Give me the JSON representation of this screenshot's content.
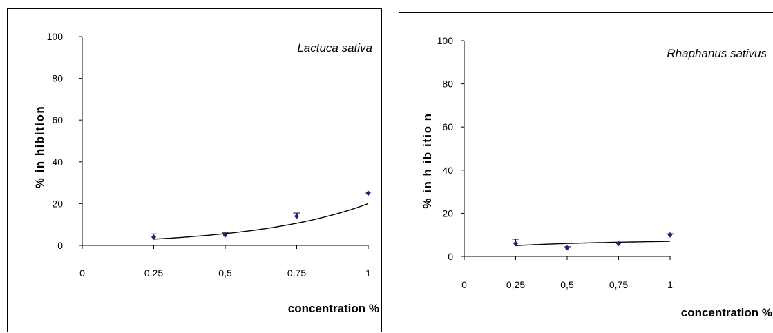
{
  "chart_data": [
    {
      "type": "scatter",
      "annotation": "Lactuca sativa",
      "xlabel": "concentration %",
      "ylabel": "% in hibition",
      "x_ticks": [
        "0",
        "0,25",
        "0,5",
        "0,75",
        "1"
      ],
      "y_ticks": [
        "0",
        "20",
        "40",
        "60",
        "80",
        "100"
      ],
      "xlim": [
        0,
        1
      ],
      "ylim": [
        0,
        100
      ],
      "grid": false,
      "marker_color": "#1a237e",
      "points": [
        {
          "x": 0.25,
          "y": 4,
          "err": 1.5
        },
        {
          "x": 0.5,
          "y": 5,
          "err": 1
        },
        {
          "x": 0.75,
          "y": 14,
          "err": 1.5
        },
        {
          "x": 1,
          "y": 25,
          "err": 0.5
        }
      ],
      "trendline": {
        "type": "exponential",
        "x_start": 0.25,
        "x_end": 1,
        "y_start": 3,
        "y_end": 20
      }
    },
    {
      "type": "scatter",
      "annotation": "Rhaphanus sativus",
      "xlabel": "concentration %",
      "ylabel": "% in h ib itio n",
      "x_ticks": [
        "0",
        "0,25",
        "0,5",
        "0,75",
        "1"
      ],
      "y_ticks": [
        "0",
        "20",
        "40",
        "60",
        "80",
        "100"
      ],
      "xlim": [
        0,
        1
      ],
      "ylim": [
        0,
        100
      ],
      "grid": false,
      "marker_color": "#1a237e",
      "points": [
        {
          "x": 0.25,
          "y": 6,
          "err": 2
        },
        {
          "x": 0.5,
          "y": 4,
          "err": 0.5
        },
        {
          "x": 0.75,
          "y": 6,
          "err": 0.5
        },
        {
          "x": 1,
          "y": 10,
          "err": 0.5
        }
      ],
      "trendline": {
        "type": "logarithmic",
        "x_start": 0.25,
        "x_end": 1,
        "y_start": 5,
        "y_end": 7
      }
    }
  ]
}
